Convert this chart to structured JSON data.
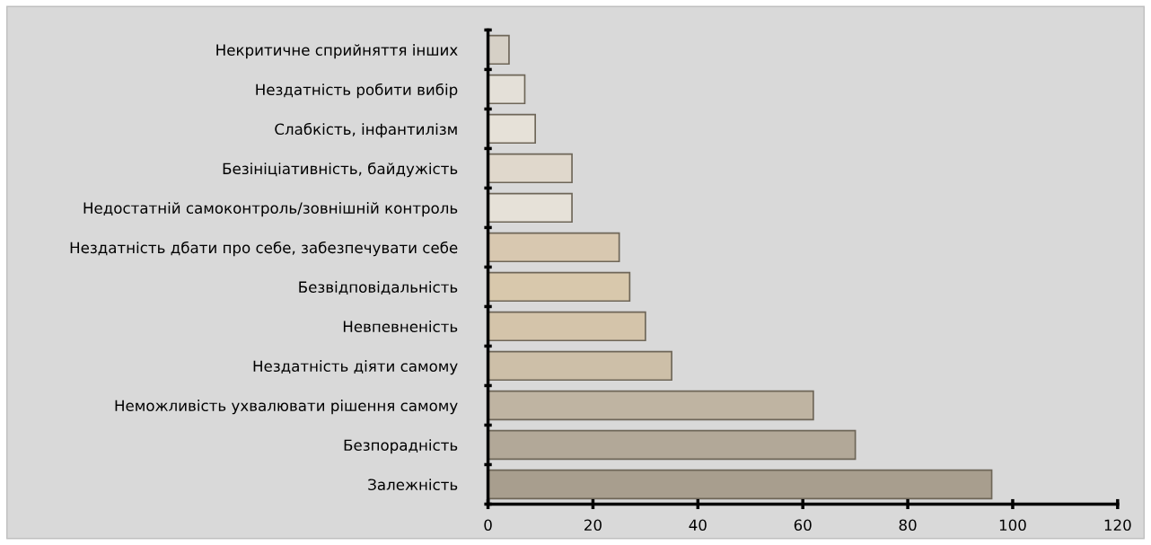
{
  "chart_data": {
    "type": "bar",
    "orientation": "horizontal",
    "categories": [
      "Некритичне сприйняття інших",
      "Нездатність робити вибір",
      "Слабкість, інфантилізм",
      "Безініціативність, байдужість",
      "Недостатній самоконтроль/зовнішній контроль",
      "Нездатність дбати про себе, забезпечувати себе",
      "Безвідповідальність",
      "Невпевненість",
      "Нездатність діяти самому",
      "Неможливість ухвалювати рішення самому",
      "Безпорадність",
      "Залежність"
    ],
    "values": [
      4,
      7,
      9,
      16,
      16,
      25,
      27,
      30,
      35,
      62,
      70,
      96
    ],
    "colors": [
      "#d6d0c6",
      "#e4e0d8",
      "#e6e1d8",
      "#e0d8cc",
      "#e6e1d8",
      "#d8c8b0",
      "#d8c8ac",
      "#d4c4aa",
      "#cdbfa8",
      "#bfb4a2",
      "#b2a898",
      "#a89e8e"
    ],
    "xlim": [
      0,
      120
    ],
    "xticks": [
      0,
      20,
      40,
      60,
      80,
      100,
      120
    ],
    "grid": false,
    "legend": false
  }
}
